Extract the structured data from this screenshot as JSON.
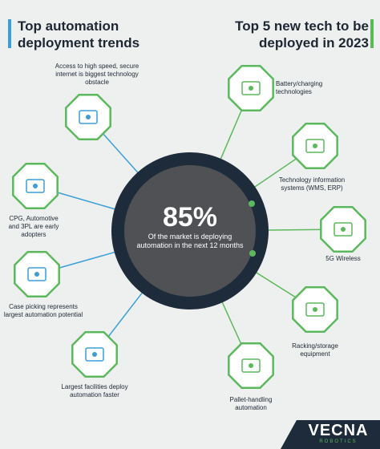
{
  "left_title": "Top automation deployment trends",
  "right_title": "Top 5 new tech to be deployed in 2023",
  "center": {
    "stat": "85%",
    "caption": "Of the market is deploying automation in the next 12 months"
  },
  "trends": [
    {
      "label": "Access to high speed, secure internet is biggest technology obstacle"
    },
    {
      "label": "CPG, Automotive and 3PL are early adopters"
    },
    {
      "label": "Case picking represents largest automation potential"
    },
    {
      "label": "Largest facilities deploy automation faster"
    }
  ],
  "tech": [
    {
      "label": "Battery/charging technologies"
    },
    {
      "label": "Technology information systems (WMS, ERP)"
    },
    {
      "label": "5G Wireless"
    },
    {
      "label": "Racking/storage equipment"
    },
    {
      "label": "Pallet-handling automation"
    }
  ],
  "logo": {
    "name": "VECNA",
    "tagline": "ROBOTICS"
  }
}
